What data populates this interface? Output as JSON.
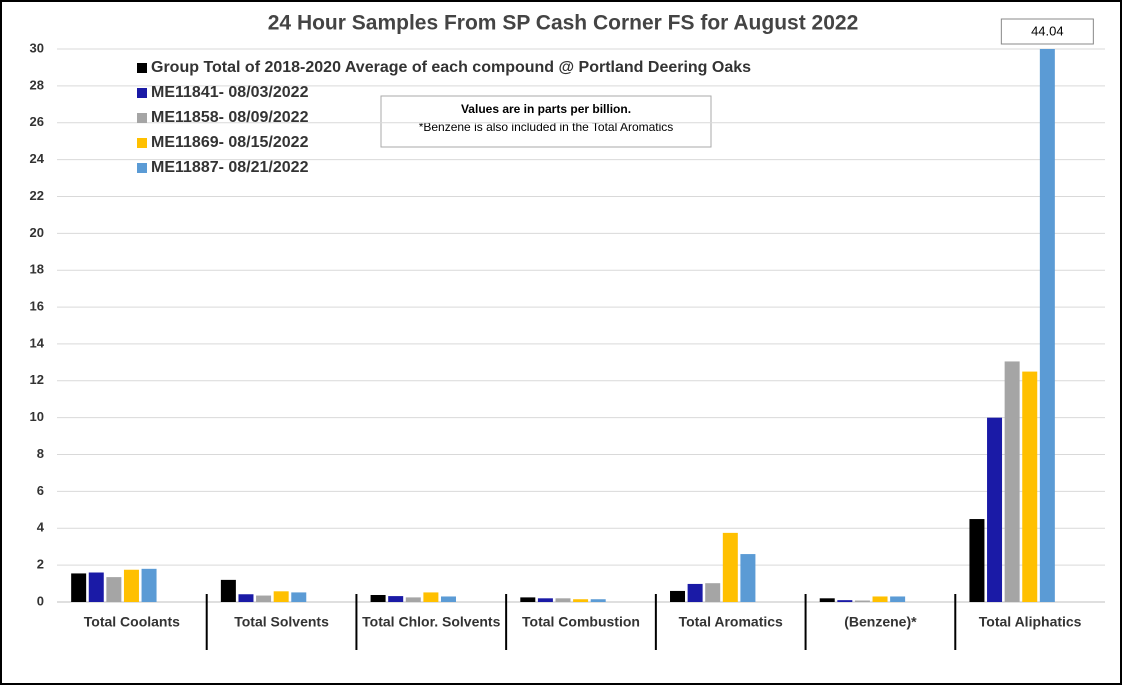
{
  "chart_data": {
    "type": "bar",
    "title": "24 Hour Samples From SP Cash Corner FS for August 2022",
    "note": [
      "Values are in parts per billion.",
      "*Benzene is also included in the Total Aromatics"
    ],
    "categories": [
      "Total Coolants",
      "Total Solvents",
      "Total Chlor. Solvents",
      "Total Combustion",
      "Total Aromatics",
      "(Benzene)*",
      "Total Aliphatics"
    ],
    "series": [
      {
        "name": "Group Total of 2018-2020 Average of each compound @ Portland Deering Oaks",
        "color": "#000000",
        "values": [
          1.55,
          1.2,
          0.38,
          0.25,
          0.6,
          0.2,
          4.5
        ]
      },
      {
        "name": "ME11841- 08/03/2022",
        "color": "#1a1aa6",
        "values": [
          1.6,
          0.42,
          0.32,
          0.2,
          0.98,
          0.1,
          10.0
        ]
      },
      {
        "name": "ME11858- 08/09/2022",
        "color": "#a5a5a5",
        "values": [
          1.35,
          0.35,
          0.25,
          0.2,
          1.02,
          0.08,
          13.05
        ]
      },
      {
        "name": "ME11869- 08/15/2022",
        "color": "#ffc000",
        "values": [
          1.75,
          0.58,
          0.52,
          0.15,
          3.75,
          0.3,
          12.5
        ]
      },
      {
        "name": "ME11887- 08/21/2022",
        "color": "#5b9bd5",
        "values": [
          1.8,
          0.52,
          0.3,
          0.15,
          2.6,
          0.3,
          44.04
        ],
        "value_labels": [
          null,
          null,
          null,
          null,
          null,
          null,
          "44.04"
        ]
      }
    ],
    "ylim": [
      0,
      30
    ],
    "yticks": [
      0,
      2,
      4,
      6,
      8,
      10,
      12,
      14,
      16,
      18,
      20,
      22,
      24,
      26,
      28,
      30
    ],
    "grid": true
  }
}
